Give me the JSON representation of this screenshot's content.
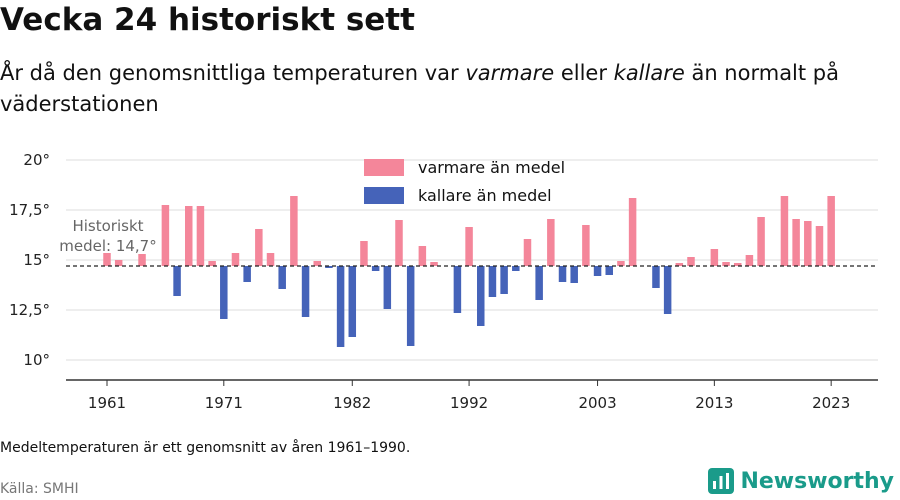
{
  "title": "Vecka 24 historiskt sett",
  "subtitle": {
    "part1": "År då den genomsnittliga temperaturen var ",
    "em1": "varmare",
    "part2": " eller ",
    "em2": "kallare",
    "part3": " än normalt på väderstationen"
  },
  "footnote": "Medeltemperaturen är ett genomsnitt av åren 1961–1990.",
  "source": "Källa: SMHI",
  "brand": "Newsworthy",
  "colors": {
    "warmer": "#f4869a",
    "colder": "#4563b9",
    "brand": "#1a9b8a"
  },
  "chart_data": {
    "type": "bar",
    "baseline": 14.7,
    "baseline_label": [
      "Historiskt",
      "medel: 14,7°"
    ],
    "ylim": [
      9,
      21
    ],
    "y_ticks": [
      {
        "value": 10,
        "label": "10°"
      },
      {
        "value": 12.5,
        "label": "12,5°"
      },
      {
        "value": 15,
        "label": "15°"
      },
      {
        "value": 17.5,
        "label": "17,5°"
      },
      {
        "value": 20,
        "label": "20°"
      }
    ],
    "x_ticks": [
      1961,
      1971,
      1982,
      1992,
      2003,
      2013,
      2023
    ],
    "legend": [
      {
        "key": "warmer",
        "label": "varmare än medel"
      },
      {
        "key": "colder",
        "label": "kallare än medel"
      }
    ],
    "series": [
      {
        "name": "varmare än medel",
        "key": "warmer"
      },
      {
        "name": "kallare än medel",
        "key": "colder"
      }
    ],
    "years": [
      1961,
      1962,
      1963,
      1964,
      1965,
      1966,
      1967,
      1968,
      1969,
      1970,
      1971,
      1972,
      1973,
      1974,
      1975,
      1976,
      1977,
      1978,
      1979,
      1980,
      1981,
      1982,
      1983,
      1984,
      1985,
      1986,
      1987,
      1988,
      1989,
      1990,
      1991,
      1992,
      1993,
      1994,
      1995,
      1996,
      1997,
      1998,
      1999,
      2000,
      2001,
      2002,
      2003,
      2004,
      2005,
      2006,
      2007,
      2008,
      2009,
      2010,
      2011,
      2012,
      2013,
      2014,
      2015,
      2016,
      2017,
      2018,
      2019,
      2020,
      2021,
      2022,
      2023
    ],
    "values": [
      15.35,
      15.0,
      null,
      15.3,
      null,
      17.75,
      13.2,
      17.7,
      17.7,
      14.95,
      12.05,
      15.35,
      13.9,
      16.55,
      15.35,
      13.55,
      18.2,
      12.15,
      14.95,
      14.6,
      10.65,
      11.15,
      15.95,
      14.45,
      12.55,
      17.0,
      10.7,
      15.7,
      14.9,
      null,
      12.35,
      16.65,
      11.7,
      13.15,
      13.3,
      14.45,
      16.05,
      13.0,
      17.05,
      13.9,
      13.85,
      16.75,
      14.2,
      14.25,
      14.95,
      18.1,
      null,
      13.6,
      12.3,
      14.85,
      15.15,
      null,
      15.55,
      14.9,
      14.85,
      15.25,
      17.15,
      null,
      18.2,
      17.05,
      16.95,
      16.7,
      18.2
    ]
  }
}
